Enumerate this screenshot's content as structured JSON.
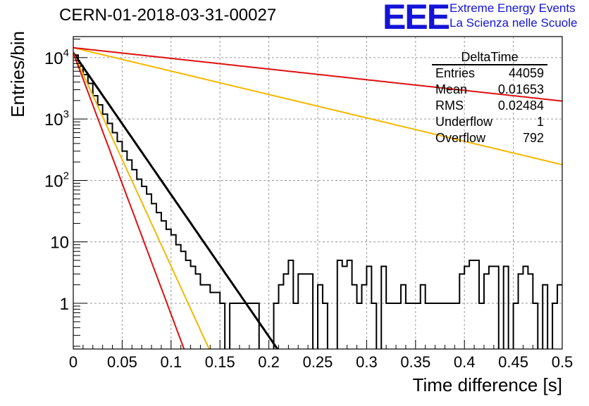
{
  "header": {
    "run_title": "CERN-01-2018-03-31-00027",
    "logo_text": "EEE",
    "logo_line1": "Extreme Energy Events",
    "logo_line2": "La Scienza nelle Scuole"
  },
  "stats_box": {
    "title": "DeltaTime",
    "rows": [
      {
        "key": "Entries",
        "value": "44059"
      },
      {
        "key": "Mean",
        "value": "0.01653"
      },
      {
        "key": "RMS",
        "value": "0.02484"
      },
      {
        "key": "Underflow",
        "value": "1"
      },
      {
        "key": "Overflow",
        "value": "792"
      }
    ]
  },
  "colors": {
    "histogram": "#000000",
    "fit_main": "#000000",
    "fit_fast_red": "#dd1111",
    "fit_fast_yellow": "#f4b800",
    "fit_slow_red": "#dd1111",
    "fit_slow_yellow": "#f4b800",
    "grid": "#9a9a9a",
    "logo": "#1414d8"
  },
  "chart_data": {
    "type": "line",
    "xlabel": "Time difference [s]",
    "ylabel": "Entries/bin",
    "xlim": [
      0,
      0.5
    ],
    "ylim": [
      0.18,
      22000
    ],
    "yscale": "log",
    "grid": true,
    "legend": "top-right",
    "x_ticks": [
      {
        "value": 0,
        "label": "0"
      },
      {
        "value": 0.05,
        "label": "0.05"
      },
      {
        "value": 0.1,
        "label": "0.1"
      },
      {
        "value": 0.15,
        "label": "0.15"
      },
      {
        "value": 0.2,
        "label": "0.2"
      },
      {
        "value": 0.25,
        "label": "0.25"
      },
      {
        "value": 0.3,
        "label": "0.3"
      },
      {
        "value": 0.35,
        "label": "0.35"
      },
      {
        "value": 0.4,
        "label": "0.4"
      },
      {
        "value": 0.45,
        "label": "0.45"
      },
      {
        "value": 0.5,
        "label": "0.5"
      }
    ],
    "y_ticks": [
      {
        "value": 1,
        "base": "1",
        "exp": ""
      },
      {
        "value": 10,
        "base": "10",
        "exp": ""
      },
      {
        "value": 100,
        "base": "10",
        "exp": "2"
      },
      {
        "value": 1000,
        "base": "10",
        "exp": "3"
      },
      {
        "value": 10000,
        "base": "10",
        "exp": "4"
      }
    ],
    "histogram": {
      "bin_width": 0.005,
      "counts": [
        11000,
        7300,
        5300,
        3800,
        2400,
        1700,
        1200,
        850,
        600,
        430,
        300,
        215,
        150,
        105,
        80,
        60,
        42,
        30,
        22,
        16,
        13,
        9,
        7,
        5,
        4,
        3,
        2,
        2,
        1.5,
        1.5,
        1,
        0,
        1,
        1,
        1,
        1,
        1,
        1,
        0,
        0,
        0,
        1,
        2,
        3,
        5,
        1,
        3,
        3,
        3,
        0,
        2,
        1,
        0,
        0,
        5,
        4,
        5,
        2,
        1,
        2,
        4,
        1,
        0,
        4,
        1,
        1,
        1,
        2,
        1,
        1,
        1,
        2,
        1,
        1,
        1,
        1,
        1,
        1,
        1,
        3,
        4,
        5,
        5,
        1,
        3,
        4,
        4,
        0,
        4,
        0,
        1,
        3,
        4,
        3,
        1,
        0,
        2,
        0,
        1,
        2
      ]
    },
    "fits": [
      {
        "A": 12000,
        "tau": 0.0188,
        "color_key": "fit_main",
        "width": 3
      },
      {
        "A": 12000,
        "tau": 0.0125,
        "color_key": "fit_fast_yellow",
        "width": 2
      },
      {
        "A": 12000,
        "tau": 0.0102,
        "color_key": "fit_fast_red",
        "width": 2
      },
      {
        "A": 14500,
        "tau": 0.114,
        "color_key": "fit_slow_yellow",
        "width": 2
      },
      {
        "A": 14500,
        "tau": 0.25,
        "color_key": "fit_slow_red",
        "width": 2
      }
    ]
  }
}
